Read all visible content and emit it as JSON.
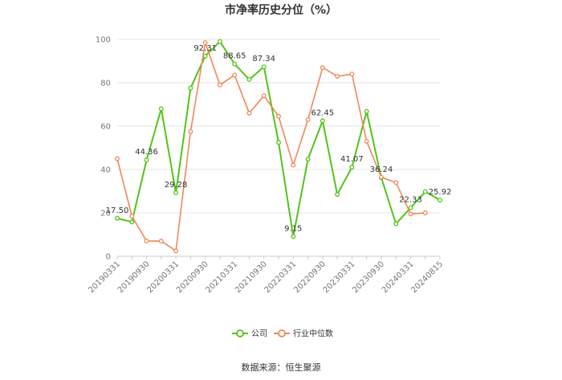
{
  "chart_data": {
    "type": "line",
    "title": "市净率历史分位（%）",
    "x_tick_labels": [
      "20190331",
      "20190930",
      "20200331",
      "20200930",
      "20210331",
      "20210930",
      "20220331",
      "20220930",
      "20230331",
      "20230930",
      "20240331",
      "20240815"
    ],
    "ylim": [
      0,
      100
    ],
    "yticks": [
      0,
      20,
      40,
      60,
      80,
      100
    ],
    "grid": true,
    "legend_position": "bottom",
    "series": [
      {
        "name": "公司",
        "color": "#52c41a",
        "values": [
          17.5,
          15.8,
          44.36,
          68.0,
          29.28,
          77.5,
          92.31,
          99.0,
          88.65,
          81.5,
          87.34,
          52.5,
          9.15,
          44.8,
          62.45,
          28.5,
          41.07,
          66.8,
          36.24,
          15.0,
          22.33,
          29.8,
          25.92
        ],
        "labels": {
          "0": "17.50",
          "2": "44.36",
          "4": "29.28",
          "6": "92.31",
          "8": "88.65",
          "10": "87.34",
          "12": "9.15",
          "14": "62.45",
          "16": "41.07",
          "18": "36.24",
          "20": "22.33",
          "22": "25.92"
        }
      },
      {
        "name": "行业中位数",
        "color": "#f0875a",
        "values": [
          45.0,
          18.5,
          7.0,
          7.0,
          2.5,
          57.5,
          98.5,
          79.0,
          83.5,
          66.0,
          74.0,
          64.5,
          42.0,
          63.0,
          87.0,
          83.0,
          84.0,
          53.0,
          36.5,
          34.0,
          19.5,
          20.0,
          null
        ]
      }
    ]
  },
  "footer": {
    "source": "数据来源：恒生聚源"
  }
}
